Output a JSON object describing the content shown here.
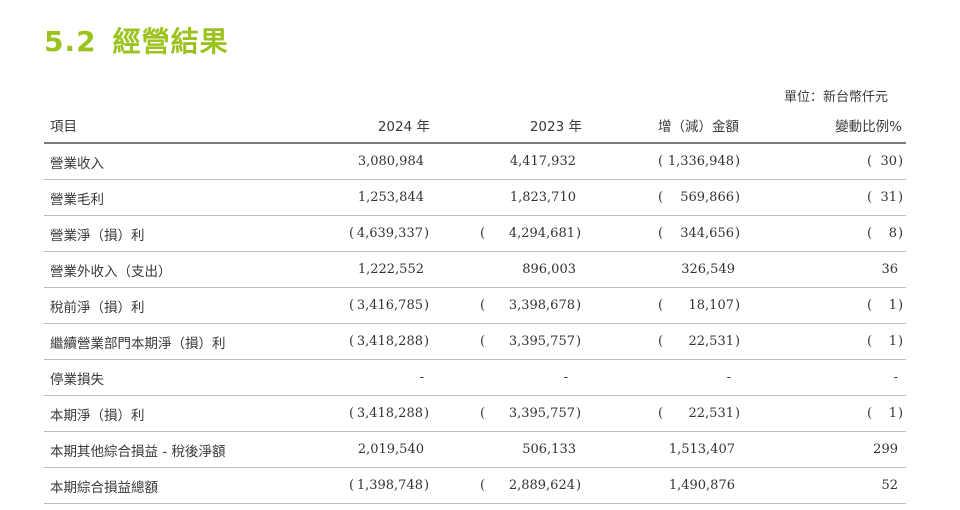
{
  "section": {
    "number": "5.2",
    "title": "經營結果"
  },
  "unit_note": "單位：新台幣仟元",
  "table": {
    "headers": [
      "項目",
      "2024 年",
      "2023 年",
      "增（減）金額",
      "變動比例%"
    ],
    "rows": [
      {
        "label": "營業收入",
        "cells": [
          {
            "neg": false,
            "v": "3,080,984"
          },
          {
            "neg": false,
            "v": "4,417,932"
          },
          {
            "neg": true,
            "v": "1,336,948"
          },
          {
            "neg": true,
            "v": "30"
          }
        ]
      },
      {
        "label": "營業毛利",
        "cells": [
          {
            "neg": false,
            "v": "1,253,844"
          },
          {
            "neg": false,
            "v": "1,823,710"
          },
          {
            "neg": true,
            "v": "569,866"
          },
          {
            "neg": true,
            "v": "31"
          }
        ]
      },
      {
        "label": "營業淨（損）利",
        "cells": [
          {
            "neg": true,
            "v": "4,639,337"
          },
          {
            "neg": true,
            "v": "4,294,681"
          },
          {
            "neg": true,
            "v": "344,656"
          },
          {
            "neg": true,
            "v": "8"
          }
        ]
      },
      {
        "label": "營業外收入（支出）",
        "cells": [
          {
            "neg": false,
            "v": "1,222,552"
          },
          {
            "neg": false,
            "v": "896,003"
          },
          {
            "neg": false,
            "v": "326,549"
          },
          {
            "neg": false,
            "v": "36"
          }
        ]
      },
      {
        "label": "稅前淨（損）利",
        "cells": [
          {
            "neg": true,
            "v": "3,416,785"
          },
          {
            "neg": true,
            "v": "3,398,678"
          },
          {
            "neg": true,
            "v": "18,107"
          },
          {
            "neg": true,
            "v": "1"
          }
        ]
      },
      {
        "label": "繼續營業部門本期淨（損）利",
        "cells": [
          {
            "neg": true,
            "v": "3,418,288"
          },
          {
            "neg": true,
            "v": "3,395,757"
          },
          {
            "neg": true,
            "v": "22,531"
          },
          {
            "neg": true,
            "v": "1"
          }
        ]
      },
      {
        "label": "停業損失",
        "cells": [
          {
            "neg": false,
            "dash": true,
            "v": "-"
          },
          {
            "neg": false,
            "dash": true,
            "v": "-"
          },
          {
            "neg": false,
            "dash": true,
            "v": "-"
          },
          {
            "neg": false,
            "dash": true,
            "v": "-"
          }
        ]
      },
      {
        "label": "本期淨（損）利",
        "cells": [
          {
            "neg": true,
            "v": "3,418,288"
          },
          {
            "neg": true,
            "v": "3,395,757"
          },
          {
            "neg": true,
            "v": "22,531"
          },
          {
            "neg": true,
            "v": "1"
          }
        ]
      },
      {
        "label": "本期其他綜合損益 - 稅後淨額",
        "cells": [
          {
            "neg": false,
            "v": "2,019,540"
          },
          {
            "neg": false,
            "v": "506,133"
          },
          {
            "neg": false,
            "v": "1,513,407"
          },
          {
            "neg": false,
            "v": "299"
          }
        ]
      },
      {
        "label": "本期綜合損益總額",
        "cells": [
          {
            "neg": true,
            "v": "1,398,748"
          },
          {
            "neg": true,
            "v": "2,889,624"
          },
          {
            "neg": false,
            "v": "1,490,876"
          },
          {
            "neg": false,
            "v": "52"
          }
        ]
      }
    ]
  },
  "colors": {
    "title_accent": "#9bc31d",
    "text": "#3a3a3a",
    "header_rule": "#7b7b7b",
    "row_rule": "#bdbdbd"
  }
}
